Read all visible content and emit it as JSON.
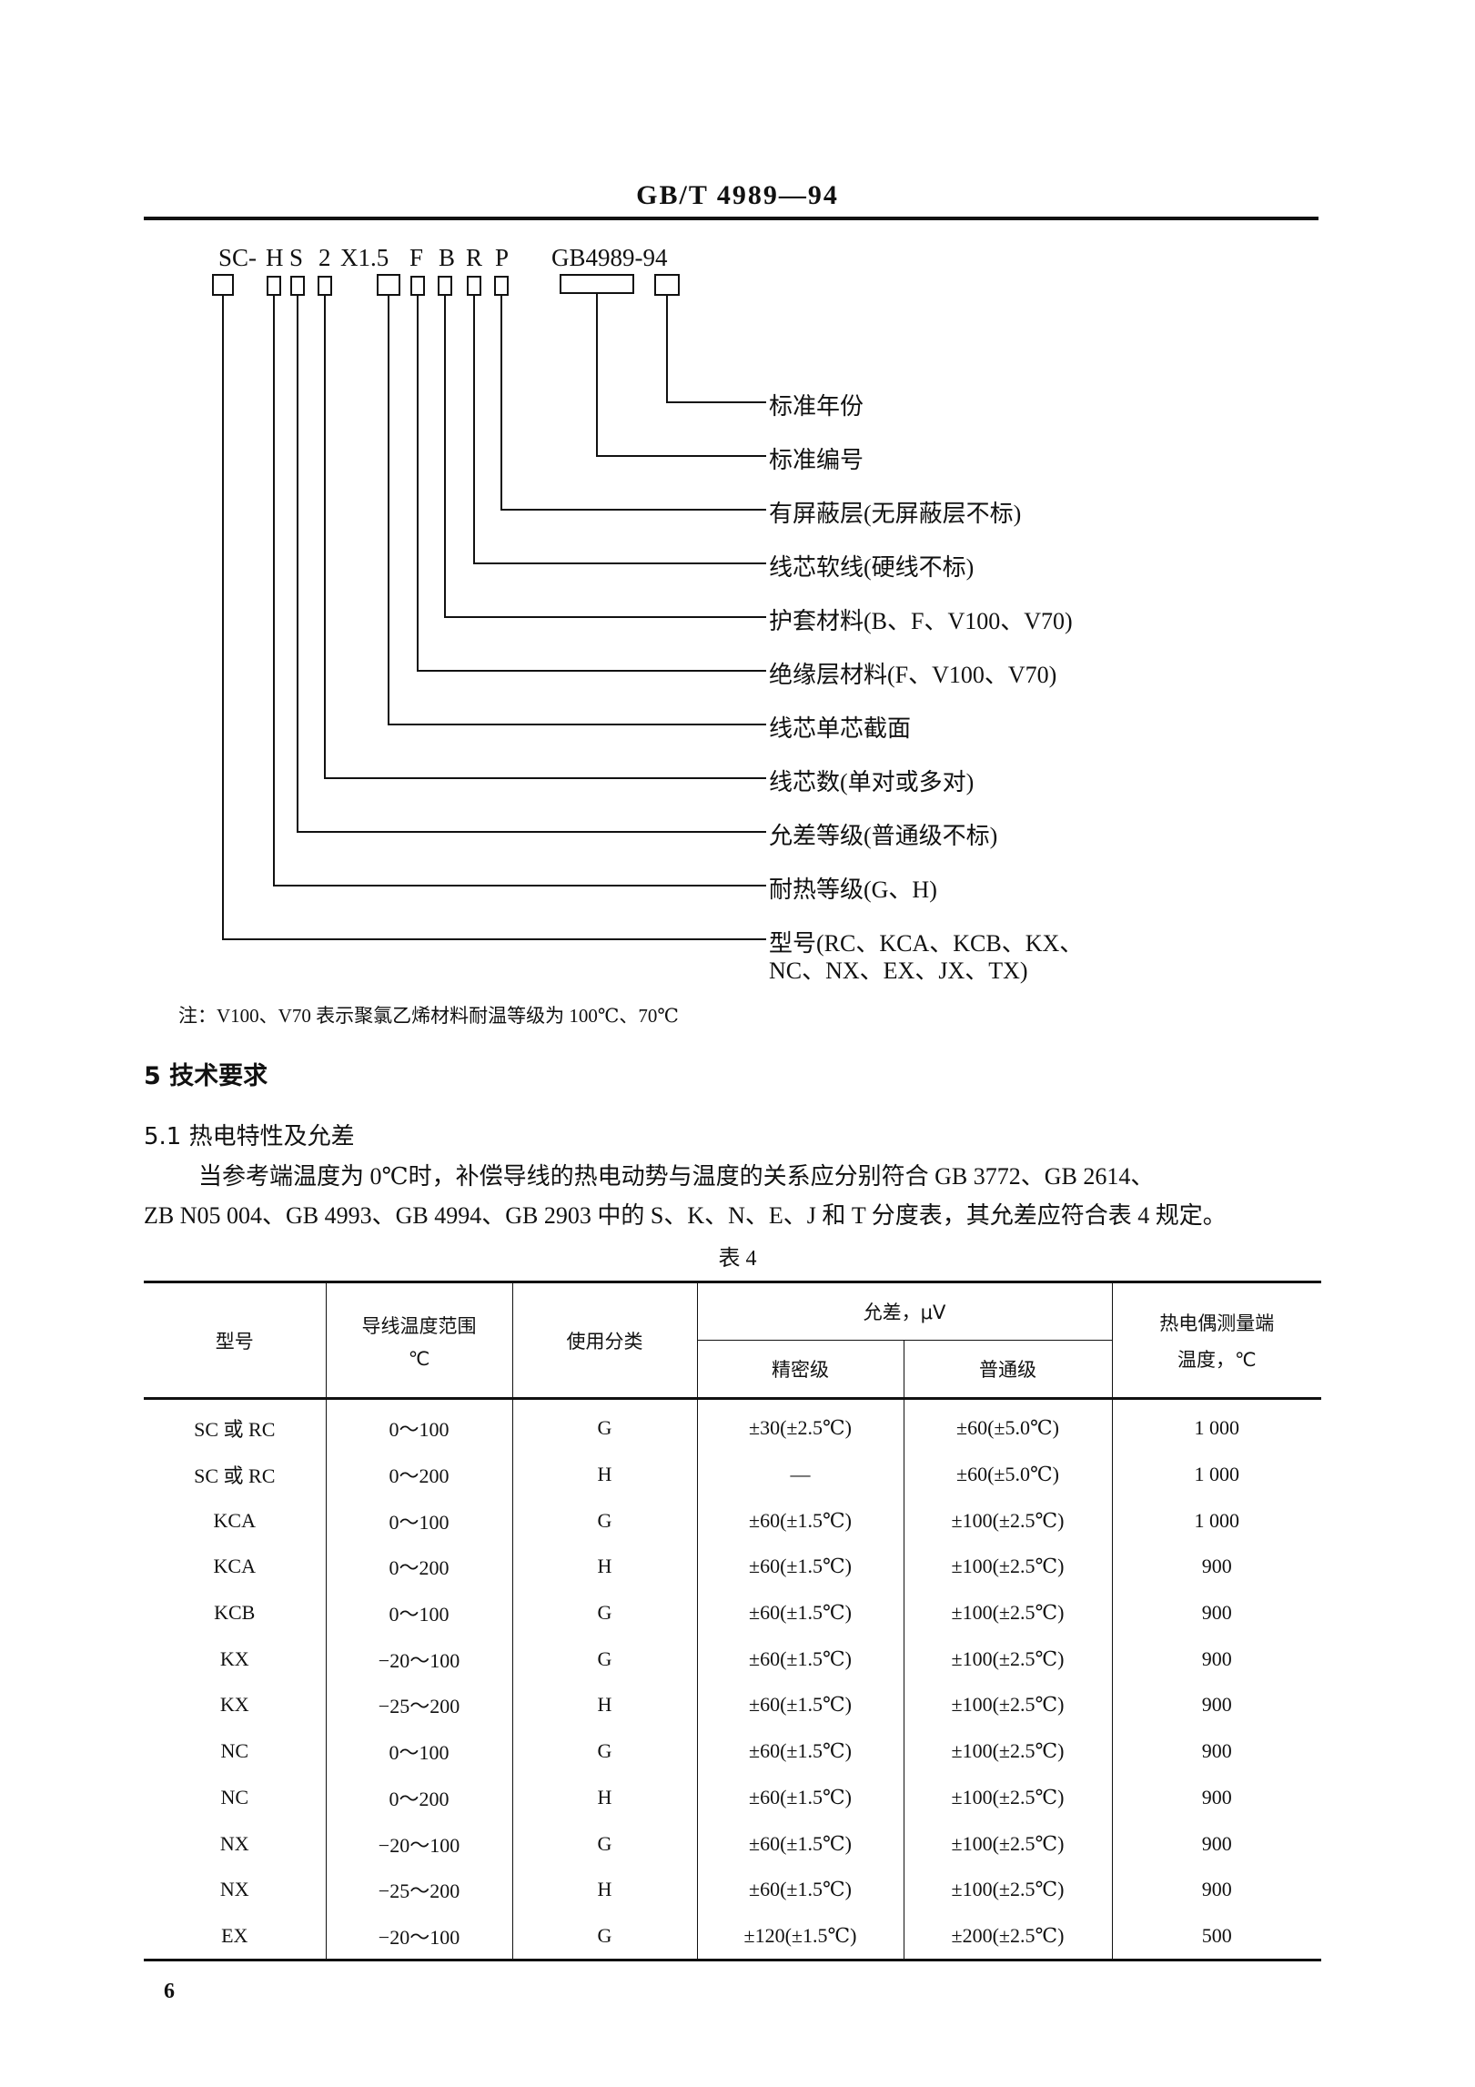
{
  "header": {
    "title": "GB/T 4989—94"
  },
  "designation": {
    "code_parts": [
      "SC-",
      "H",
      "S",
      "2",
      "X1.5",
      "F",
      "B",
      "R",
      "P",
      "GB4989-94"
    ],
    "labels": [
      "标准年份",
      "标准编号",
      "有屏蔽层(无屏蔽层不标)",
      "线芯软线(硬线不标)",
      "护套材料(B、F、V100、V70)",
      "绝缘层材料(F、V100、V70)",
      "线芯单芯截面",
      "线芯数(单对或多对)",
      "允差等级(普通级不标)",
      "耐热等级(G、H)",
      "型号(RC、KCA、KCB、KX、",
      "NC、NX、EX、JX、TX)"
    ],
    "note": "注：V100、V70 表示聚氯乙烯材料耐温等级为 100℃、70℃"
  },
  "section5": {
    "heading": "5  技术要求"
  },
  "section51": {
    "heading": "5.1  热电特性及允差",
    "para_line1": "当参考端温度为 0℃时，补偿导线的热电动势与温度的关系应分别符合 GB 3772、GB 2614、",
    "para_line2": "ZB N05 004、GB 4993、GB 4994、GB 2903 中的 S、K、N、E、J 和 T 分度表，其允差应符合表 4 规定。"
  },
  "table4": {
    "caption": "表 4",
    "headers": {
      "model": "型号",
      "temp_range": "导线温度范围",
      "temp_unit": "℃",
      "usage": "使用分类",
      "tolerance": "允差，μV",
      "precision": "精密级",
      "ordinary": "普通级",
      "tc_temp_line1": "热电偶测量端",
      "tc_temp_line2": "温度，℃"
    },
    "rows": [
      [
        "SC 或 RC",
        "0～100",
        "G",
        "±30(±2.5℃)",
        "±60(±5.0℃)",
        "1 000"
      ],
      [
        "SC 或 RC",
        "0～200",
        "H",
        "—",
        "±60(±5.0℃)",
        "1 000"
      ],
      [
        "KCA",
        "0～100",
        "G",
        "±60(±1.5℃)",
        "±100(±2.5℃)",
        "1 000"
      ],
      [
        "KCA",
        "0～200",
        "H",
        "±60(±1.5℃)",
        "±100(±2.5℃)",
        "900"
      ],
      [
        "KCB",
        "0～100",
        "G",
        "±60(±1.5℃)",
        "±100(±2.5℃)",
        "900"
      ],
      [
        "KX",
        "−20～100",
        "G",
        "±60(±1.5℃)",
        "±100(±2.5℃)",
        "900"
      ],
      [
        "KX",
        "−25～200",
        "H",
        "±60(±1.5℃)",
        "±100(±2.5℃)",
        "900"
      ],
      [
        "NC",
        "0～100",
        "G",
        "±60(±1.5℃)",
        "±100(±2.5℃)",
        "900"
      ],
      [
        "NC",
        "0～200",
        "H",
        "±60(±1.5℃)",
        "±100(±2.5℃)",
        "900"
      ],
      [
        "NX",
        "−20～100",
        "G",
        "±60(±1.5℃)",
        "±100(±2.5℃)",
        "900"
      ],
      [
        "NX",
        "−25～200",
        "H",
        "±60(±1.5℃)",
        "±100(±2.5℃)",
        "900"
      ],
      [
        "EX",
        "−20～100",
        "G",
        "±120(±1.5℃)",
        "±200(±2.5℃)",
        "500"
      ]
    ]
  },
  "page_number": "6"
}
